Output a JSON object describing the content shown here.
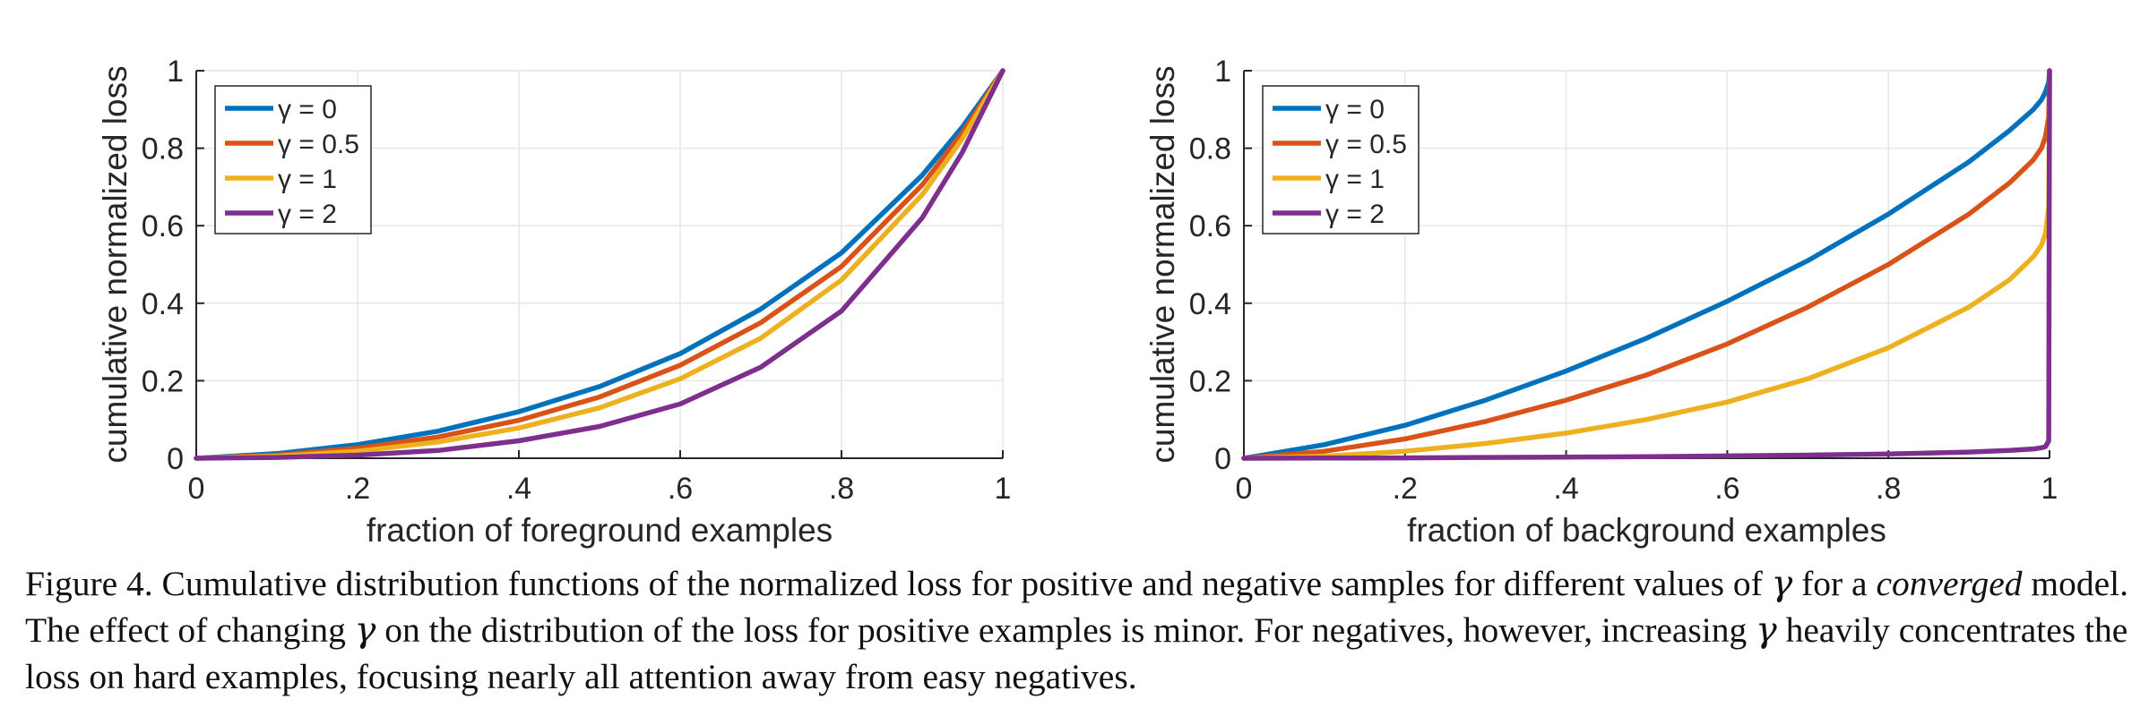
{
  "charts": [
    {
      "xlabel": "fraction of foreground examples",
      "ylabel": "cumulative normalized loss",
      "x_tick_labels": [
        "0",
        ".2",
        ".4",
        ".6",
        ".8",
        "1"
      ],
      "y_tick_labels": [
        "0",
        "0.2",
        "0.4",
        "0.6",
        "0.8",
        "1"
      ]
    },
    {
      "xlabel": "fraction of background examples",
      "ylabel": "cumulative normalized loss",
      "x_tick_labels": [
        "0",
        ".2",
        ".4",
        ".6",
        ".8",
        "1"
      ],
      "y_tick_labels": [
        "0",
        "0.2",
        "0.4",
        "0.6",
        "0.8",
        "1"
      ]
    }
  ],
  "chart_data": [
    {
      "type": "line",
      "xlabel": "fraction of foreground examples",
      "ylabel": "cumulative normalized loss",
      "xlim": [
        0,
        1
      ],
      "ylim": [
        0,
        1
      ],
      "x_ticks": [
        0,
        0.2,
        0.4,
        0.6,
        0.8,
        1
      ],
      "x_tick_labels": [
        "0",
        ".2",
        ".4",
        ".6",
        ".8",
        "1"
      ],
      "y_ticks": [
        0,
        0.2,
        0.4,
        0.6,
        0.8,
        1
      ],
      "y_tick_labels": [
        "0",
        "0.2",
        "0.4",
        "0.6",
        "0.8",
        "1"
      ],
      "grid": true,
      "legend": "top-left",
      "x": [
        0,
        0.1,
        0.2,
        0.3,
        0.4,
        0.5,
        0.6,
        0.7,
        0.8,
        0.9,
        0.95,
        1.0
      ],
      "series": [
        {
          "name": "γ = 0",
          "color": "#0072BD",
          "values": [
            0,
            0.012,
            0.035,
            0.07,
            0.12,
            0.185,
            0.27,
            0.385,
            0.53,
            0.73,
            0.855,
            1.0
          ]
        },
        {
          "name": "γ = 0.5",
          "color": "#D95319",
          "values": [
            0,
            0.008,
            0.026,
            0.055,
            0.098,
            0.158,
            0.24,
            0.35,
            0.495,
            0.705,
            0.84,
            1.0
          ]
        },
        {
          "name": "γ = 1",
          "color": "#EDB120",
          "values": [
            0,
            0.005,
            0.018,
            0.042,
            0.078,
            0.13,
            0.205,
            0.31,
            0.46,
            0.68,
            0.825,
            1.0
          ]
        },
        {
          "name": "γ = 2",
          "color": "#7E2F8E",
          "values": [
            0,
            0.002,
            0.008,
            0.02,
            0.045,
            0.082,
            0.14,
            0.235,
            0.38,
            0.62,
            0.79,
            1.0
          ]
        }
      ]
    },
    {
      "type": "line",
      "xlabel": "fraction of background examples",
      "ylabel": "cumulative normalized loss",
      "xlim": [
        0,
        1
      ],
      "ylim": [
        0,
        1
      ],
      "x_ticks": [
        0,
        0.2,
        0.4,
        0.6,
        0.8,
        1
      ],
      "x_tick_labels": [
        "0",
        ".2",
        ".4",
        ".6",
        ".8",
        "1"
      ],
      "y_ticks": [
        0,
        0.2,
        0.4,
        0.6,
        0.8,
        1
      ],
      "y_tick_labels": [
        "0",
        "0.2",
        "0.4",
        "0.6",
        "0.8",
        "1"
      ],
      "grid": true,
      "legend": "top-left",
      "x": [
        0,
        0.1,
        0.2,
        0.3,
        0.4,
        0.5,
        0.6,
        0.7,
        0.8,
        0.9,
        0.95,
        0.98,
        0.99,
        0.995,
        0.999,
        1.0
      ],
      "series": [
        {
          "name": "γ = 0",
          "color": "#0072BD",
          "values": [
            0,
            0.035,
            0.085,
            0.15,
            0.225,
            0.31,
            0.405,
            0.51,
            0.63,
            0.765,
            0.845,
            0.9,
            0.925,
            0.945,
            0.97,
            1.0
          ]
        },
        {
          "name": "γ = 0.5",
          "color": "#D95319",
          "values": [
            0,
            0.018,
            0.05,
            0.095,
            0.15,
            0.215,
            0.295,
            0.39,
            0.5,
            0.63,
            0.71,
            0.77,
            0.8,
            0.83,
            0.88,
            1.0
          ]
        },
        {
          "name": "γ = 1",
          "color": "#EDB120",
          "values": [
            0,
            0.005,
            0.018,
            0.038,
            0.065,
            0.1,
            0.145,
            0.205,
            0.285,
            0.39,
            0.46,
            0.52,
            0.55,
            0.58,
            0.65,
            1.0
          ]
        },
        {
          "name": "γ = 2",
          "color": "#7E2F8E",
          "values": [
            0,
            0.0005,
            0.001,
            0.002,
            0.003,
            0.004,
            0.006,
            0.008,
            0.011,
            0.016,
            0.02,
            0.024,
            0.027,
            0.03,
            0.045,
            1.0
          ]
        }
      ]
    }
  ],
  "caption": {
    "prefix": "Figure 4. Cumulative distribution functions of the normalized loss for positive and negative samples for different values of ",
    "gamma_1": "γ",
    "middle": " for a ",
    "emph": "converged",
    "line2_a": " model. The effect of changing ",
    "gamma_2": "γ",
    "line2_b": " on the distribution of the loss for positive examples is minor. For negatives, however, increasing ",
    "gamma_3": "γ",
    "line2_c": " heavily concentrates the loss on hard examples, focusing nearly all attention away from easy negatives."
  }
}
